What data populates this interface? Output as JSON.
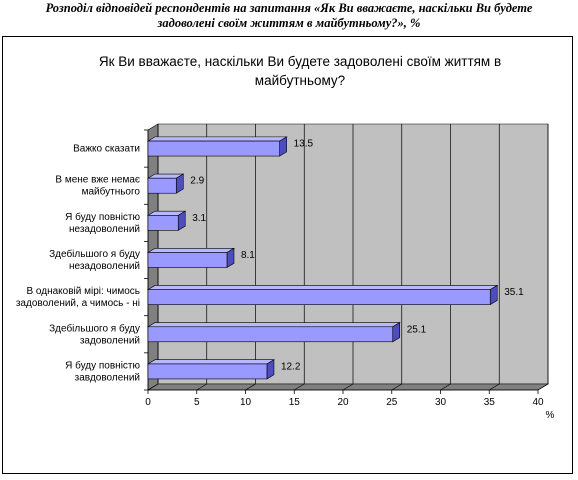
{
  "caption": {
    "line1": "Розподіл відповідей респондентів на запитання «Як Ви вважаєте, наскільки Ви будете",
    "line2": "задоволені своїм життям в майбутньому?», %"
  },
  "chart_data": {
    "type": "bar",
    "orientation": "horizontal",
    "title": "Як Ви вважаєте, наскільки Ви будете задоволені своїм життям в майбутньому?",
    "title_lines": [
      "Як Ви вважаєте, наскільки Ви будете задоволені своїм життям в",
      "майбутньому?"
    ],
    "categories": [
      "Важко сказати",
      "В мене вже немає майбутнього",
      "Я буду повністю незадоволений",
      "Здебільшого я буду незадоволений",
      "В однаковій мірі: чимось задоволений, а чимось - ні",
      "Здебільшого я буду задоволений",
      "Я буду повністю завдоволений"
    ],
    "category_lines": [
      [
        "Важко сказати"
      ],
      [
        "В мене вже немає",
        "майбутнього"
      ],
      [
        "Я буду повністю",
        "незадоволений"
      ],
      [
        "Здебільшого я буду",
        "незадоволений"
      ],
      [
        "В однаковій мірі: чимось",
        "задоволений, а чимось - ні"
      ],
      [
        "Здебільшого я буду",
        "задоволений"
      ],
      [
        "Я буду повністю",
        "завдоволений"
      ]
    ],
    "values": [
      13.5,
      2.9,
      3.1,
      8.1,
      35.1,
      25.1,
      12.2
    ],
    "value_labels": [
      "13.5",
      "2.9",
      "3.1",
      "8.1",
      "35.1",
      "25.1",
      "12.2"
    ],
    "xlabel": "%",
    "xlim": [
      0,
      40
    ],
    "xticks": [
      0,
      5,
      10,
      15,
      20,
      25,
      30,
      35,
      40
    ],
    "grid": true,
    "style": "3d",
    "colors": {
      "bar_face": "#9999ff",
      "bar_top": "#b8b8ff",
      "bar_side": "#4d4dbf",
      "wall": "#c0c0c0",
      "floor": "#808080",
      "grid": "#000000"
    }
  }
}
